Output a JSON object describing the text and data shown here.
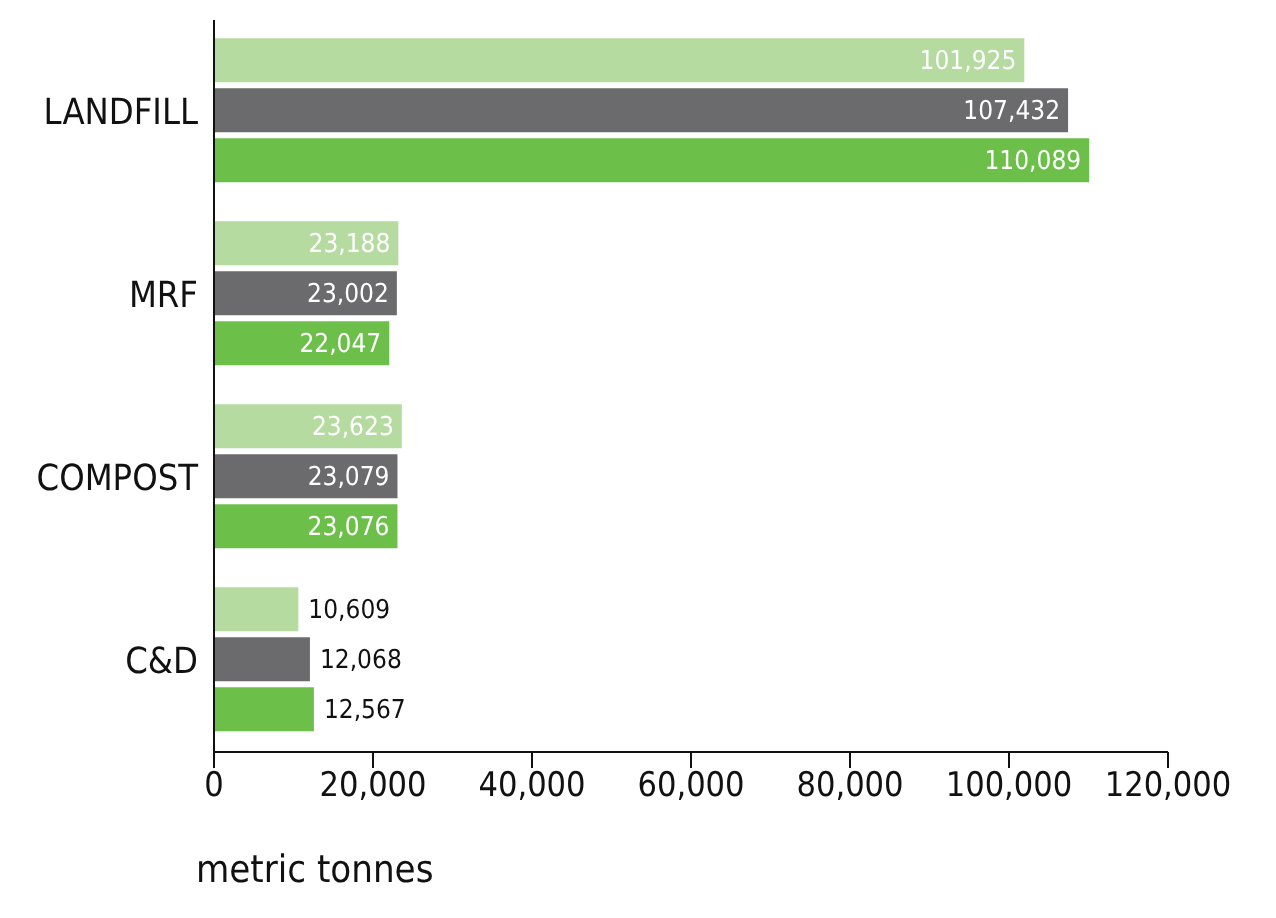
{
  "chart_data": {
    "type": "bar",
    "orientation": "horizontal",
    "xlabel": "metric tonnes",
    "categories": [
      "LANDFILL",
      "MRF",
      "COMPOST",
      "C&D"
    ],
    "series": [
      {
        "color": "#b5dba0",
        "values": [
          101925,
          23188,
          23623,
          10609
        ],
        "value_labels": [
          "101,925",
          "23,188",
          "23,623",
          "10,609"
        ]
      },
      {
        "color": "#6b6b6d",
        "values": [
          107432,
          23002,
          23079,
          12068
        ],
        "value_labels": [
          "107,432",
          "23,002",
          "23,079",
          "12,068"
        ]
      },
      {
        "color": "#6cc04a",
        "values": [
          110089,
          22047,
          23076,
          12567
        ],
        "value_labels": [
          "110,089",
          "22,047",
          "23,076",
          "12,567"
        ]
      }
    ],
    "xlim": [
      0,
      120000
    ],
    "xticks": [
      {
        "value": 0,
        "label": "0"
      },
      {
        "value": 20000,
        "label": "20,000"
      },
      {
        "value": 40000,
        "label": "40,000"
      },
      {
        "value": 60000,
        "label": "60,000"
      },
      {
        "value": 80000,
        "label": "80,000"
      },
      {
        "value": 100000,
        "label": "100,000"
      },
      {
        "value": 120000,
        "label": "120,000"
      }
    ],
    "grid": false,
    "legend": false
  }
}
